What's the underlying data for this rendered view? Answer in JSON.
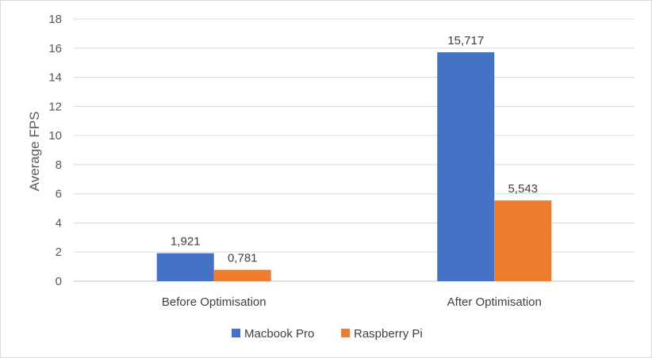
{
  "chart_data": {
    "type": "bar",
    "categories": [
      "Before Optimisation",
      "After Optimisation"
    ],
    "series": [
      {
        "name": "Macbook Pro",
        "values": [
          1.921,
          15.717
        ],
        "labels": [
          "1,921",
          "15,717"
        ],
        "color": "#4472c4"
      },
      {
        "name": "Raspberry Pi",
        "values": [
          0.781,
          5.543
        ],
        "labels": [
          "0,781",
          "5,543"
        ],
        "color": "#ed7d31"
      }
    ],
    "ylabel": "Average FPS",
    "xlabel": "",
    "ylim": [
      0,
      18
    ],
    "yticks": [
      0,
      2,
      4,
      6,
      8,
      10,
      12,
      14,
      16,
      18
    ],
    "grid": true,
    "legend": "bottom"
  }
}
